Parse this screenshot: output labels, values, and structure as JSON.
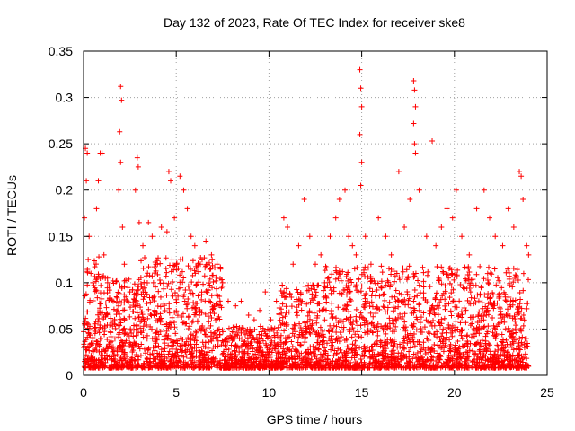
{
  "chart_data": {
    "type": "scatter",
    "title": "Day 132 of 2023, Rate Of TEC Index for receiver ske8",
    "xlabel": "GPS time / hours",
    "ylabel": "ROTI / TECUs",
    "xlim": [
      0,
      25
    ],
    "ylim": [
      0,
      0.35
    ],
    "x_ticks": [
      "0",
      "5",
      "10",
      "15",
      "20",
      "25"
    ],
    "y_ticks": [
      "0",
      "0.05",
      "0.1",
      "0.15",
      "0.2",
      "0.25",
      "0.3",
      "0.35"
    ],
    "x_tick_values": [
      0,
      5,
      10,
      15,
      20,
      25
    ],
    "y_tick_values": [
      0,
      0.05,
      0.1,
      0.15,
      0.2,
      0.25,
      0.3,
      0.35
    ],
    "grid": true,
    "marker": "+",
    "color": "#ff0000",
    "series": [
      {
        "points": [
          [
            0.1,
            0.245
          ],
          [
            0.2,
            0.24
          ],
          [
            0.15,
            0.21
          ],
          [
            0.05,
            0.17
          ],
          [
            0.3,
            0.15
          ],
          [
            0.25,
            0.125
          ],
          [
            0.4,
            0.11
          ],
          [
            0.5,
            0.1
          ],
          [
            0.8,
            0.21
          ],
          [
            0.9,
            0.24
          ],
          [
            1.0,
            0.24
          ],
          [
            0.7,
            0.18
          ],
          [
            1.1,
            0.13
          ],
          [
            1.3,
            0.1
          ],
          [
            1.6,
            0.08
          ],
          [
            1.8,
            0.07
          ],
          [
            2.0,
            0.312
          ],
          [
            2.05,
            0.297
          ],
          [
            1.95,
            0.263
          ],
          [
            2.0,
            0.23
          ],
          [
            1.9,
            0.2
          ],
          [
            2.1,
            0.16
          ],
          [
            2.2,
            0.12
          ],
          [
            2.5,
            0.09
          ],
          [
            2.9,
            0.235
          ],
          [
            2.95,
            0.225
          ],
          [
            2.8,
            0.2
          ],
          [
            3.0,
            0.165
          ],
          [
            3.2,
            0.14
          ],
          [
            3.5,
            0.165
          ],
          [
            3.7,
            0.15
          ],
          [
            3.9,
            0.12
          ],
          [
            4.2,
            0.16
          ],
          [
            4.5,
            0.155
          ],
          [
            4.6,
            0.22
          ],
          [
            4.7,
            0.21
          ],
          [
            4.9,
            0.17
          ],
          [
            5.2,
            0.215
          ],
          [
            5.4,
            0.2
          ],
          [
            5.6,
            0.18
          ],
          [
            5.8,
            0.15
          ],
          [
            6.0,
            0.14
          ],
          [
            6.3,
            0.12
          ],
          [
            6.6,
            0.145
          ],
          [
            6.9,
            0.13
          ],
          [
            7.2,
            0.12
          ],
          [
            7.5,
            0.1
          ],
          [
            7.8,
            0.08
          ],
          [
            8.2,
            0.075
          ],
          [
            8.5,
            0.08
          ],
          [
            8.9,
            0.065
          ],
          [
            9.2,
            0.06
          ],
          [
            9.5,
            0.07
          ],
          [
            9.8,
            0.09
          ],
          [
            10.1,
            0.06
          ],
          [
            10.4,
            0.08
          ],
          [
            10.8,
            0.17
          ],
          [
            11.0,
            0.16
          ],
          [
            11.3,
            0.12
          ],
          [
            11.6,
            0.14
          ],
          [
            11.9,
            0.19
          ],
          [
            12.2,
            0.15
          ],
          [
            12.5,
            0.12
          ],
          [
            12.8,
            0.13
          ],
          [
            13.0,
            0.1
          ],
          [
            13.3,
            0.15
          ],
          [
            13.6,
            0.17
          ],
          [
            13.8,
            0.19
          ],
          [
            14.1,
            0.2
          ],
          [
            14.3,
            0.15
          ],
          [
            14.5,
            0.14
          ],
          [
            14.7,
            0.13
          ],
          [
            14.9,
            0.33
          ],
          [
            14.95,
            0.31
          ],
          [
            15.0,
            0.29
          ],
          [
            14.9,
            0.26
          ],
          [
            15.0,
            0.23
          ],
          [
            14.95,
            0.205
          ],
          [
            15.2,
            0.15
          ],
          [
            15.5,
            0.12
          ],
          [
            15.9,
            0.17
          ],
          [
            16.3,
            0.15
          ],
          [
            16.6,
            0.13
          ],
          [
            16.9,
            0.11
          ],
          [
            17.0,
            0.22
          ],
          [
            17.3,
            0.16
          ],
          [
            17.6,
            0.19
          ],
          [
            17.8,
            0.318
          ],
          [
            17.85,
            0.308
          ],
          [
            17.9,
            0.29
          ],
          [
            17.8,
            0.272
          ],
          [
            17.85,
            0.25
          ],
          [
            17.9,
            0.24
          ],
          [
            18.1,
            0.2
          ],
          [
            18.5,
            0.15
          ],
          [
            18.8,
            0.253
          ],
          [
            19.0,
            0.14
          ],
          [
            19.3,
            0.16
          ],
          [
            19.6,
            0.18
          ],
          [
            19.9,
            0.17
          ],
          [
            20.1,
            0.2
          ],
          [
            20.4,
            0.15
          ],
          [
            20.8,
            0.13
          ],
          [
            21.2,
            0.18
          ],
          [
            21.6,
            0.2
          ],
          [
            21.9,
            0.17
          ],
          [
            22.2,
            0.15
          ],
          [
            22.6,
            0.14
          ],
          [
            22.9,
            0.18
          ],
          [
            23.2,
            0.16
          ],
          [
            23.5,
            0.22
          ],
          [
            23.6,
            0.215
          ],
          [
            23.7,
            0.19
          ],
          [
            23.9,
            0.14
          ],
          [
            24.0,
            0.13
          ]
        ]
      }
    ]
  }
}
